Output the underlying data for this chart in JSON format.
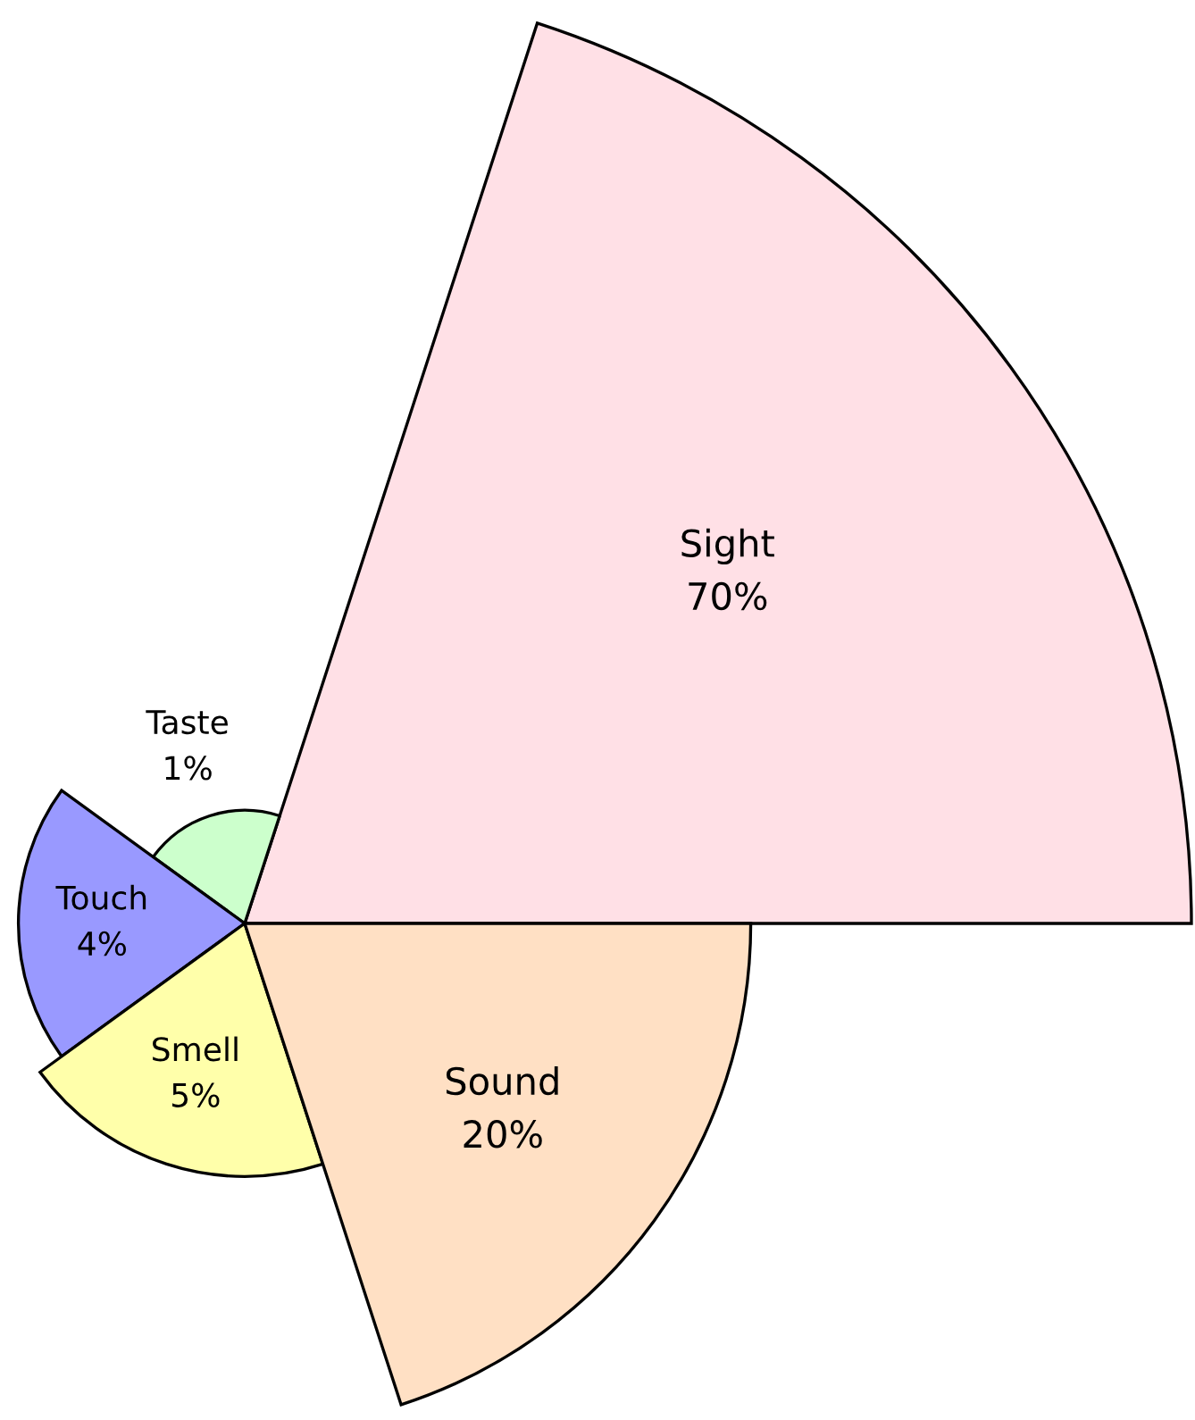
{
  "chart_data": {
    "type": "other",
    "categories": [
      "Sight",
      "Taste",
      "Touch",
      "Smell",
      "Sound"
    ],
    "values": [
      70,
      1,
      4,
      5,
      20
    ],
    "value_labels": [
      "70%",
      "1%",
      "4%",
      "5%",
      "20%"
    ],
    "colors": [
      "#ffe0e6",
      "#ccffcc",
      "#9999ff",
      "#ffffaa",
      "#ffe0c4"
    ]
  }
}
